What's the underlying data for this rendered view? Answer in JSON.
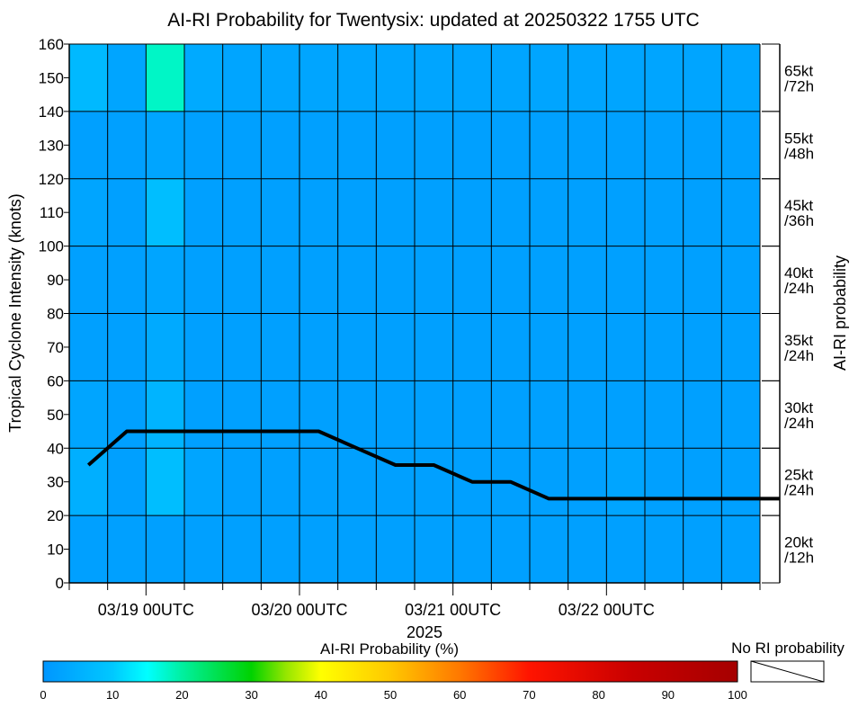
{
  "chart_data": {
    "type": "heatmap",
    "title": "AI-RI Probability for Twentysix: updated at 20250322 1755 UTC",
    "ylabel": "Tropical Cyclone Intensity (knots)",
    "xlabel": "2025",
    "right_label": "AI-RI probability",
    "ylim": [
      0,
      160
    ],
    "y_ticks": [
      0,
      10,
      20,
      30,
      40,
      50,
      60,
      70,
      80,
      90,
      100,
      110,
      120,
      130,
      140,
      150,
      160
    ],
    "x_tick_labels": [
      "03/19 00UTC",
      "03/20 00UTC",
      "03/21 00UTC",
      "03/22 00UTC"
    ],
    "time_columns": [
      "03/18 12UTC",
      "03/18 18UTC",
      "03/19 00UTC",
      "03/19 06UTC",
      "03/19 12UTC",
      "03/19 18UTC",
      "03/20 00UTC",
      "03/20 06UTC",
      "03/20 12UTC",
      "03/20 18UTC",
      "03/21 00UTC",
      "03/21 06UTC",
      "03/21 12UTC",
      "03/21 18UTC",
      "03/22 00UTC",
      "03/22 06UTC",
      "03/22 12UTC",
      "03/22 18UTC"
    ],
    "ri_rows": [
      {
        "label": [
          "20kt",
          "/12h"
        ],
        "y_range": [
          0,
          20
        ]
      },
      {
        "label": [
          "25kt",
          "/24h"
        ],
        "y_range": [
          20,
          40
        ]
      },
      {
        "label": [
          "30kt",
          "/24h"
        ],
        "y_range": [
          40,
          60
        ]
      },
      {
        "label": [
          "35kt",
          "/24h"
        ],
        "y_range": [
          60,
          80
        ]
      },
      {
        "label": [
          "40kt",
          "/24h"
        ],
        "y_range": [
          80,
          100
        ]
      },
      {
        "label": [
          "45kt",
          "/36h"
        ],
        "y_range": [
          100,
          120
        ]
      },
      {
        "label": [
          "55kt",
          "/48h"
        ],
        "y_range": [
          120,
          140
        ]
      },
      {
        "label": [
          "65kt",
          "/72h"
        ],
        "y_range": [
          140,
          160
        ]
      }
    ],
    "probabilities": [
      [
        2,
        2,
        2,
        2,
        2,
        2,
        2,
        2,
        2,
        2,
        2,
        2,
        2,
        2,
        2,
        2,
        2,
        2
      ],
      [
        5,
        2,
        8,
        3,
        2,
        2,
        2,
        2,
        2,
        2,
        2,
        2,
        2,
        2,
        3,
        2,
        2,
        2
      ],
      [
        3,
        2,
        6,
        2,
        2,
        2,
        2,
        2,
        2,
        2,
        2,
        2,
        2,
        2,
        2,
        2,
        2,
        2
      ],
      [
        2,
        2,
        4,
        2,
        2,
        2,
        2,
        2,
        2,
        2,
        2,
        2,
        2,
        2,
        2,
        2,
        2,
        2
      ],
      [
        2,
        2,
        3,
        2,
        2,
        2,
        2,
        2,
        2,
        2,
        2,
        2,
        2,
        2,
        2,
        2,
        2,
        2
      ],
      [
        3,
        2,
        8,
        2,
        2,
        2,
        2,
        2,
        2,
        2,
        2,
        2,
        2,
        2,
        2,
        2,
        2,
        2
      ],
      [
        2,
        2,
        3,
        2,
        2,
        2,
        2,
        2,
        2,
        2,
        2,
        2,
        2,
        2,
        2,
        2,
        2,
        2
      ],
      [
        7,
        3,
        18,
        4,
        3,
        3,
        3,
        3,
        3,
        3,
        3,
        3,
        3,
        3,
        3,
        3,
        3,
        3
      ]
    ],
    "intensity_series": {
      "x_index": [
        0.5,
        1.5,
        2.5,
        3.5,
        4.5,
        5.5,
        6.5,
        7.5,
        8.5,
        9.5,
        10.5,
        11.5,
        12.5,
        13.5,
        14.5,
        15.5,
        16.5,
        17.5
      ],
      "values": [
        35,
        45,
        45,
        45,
        45,
        45,
        45,
        40,
        35,
        35,
        30,
        30,
        25,
        25,
        25,
        25,
        25,
        25
      ]
    },
    "colorbar": {
      "label": "AI-RI Probability (%)",
      "range": [
        0,
        100
      ],
      "ticks": [
        0,
        10,
        20,
        30,
        40,
        50,
        60,
        70,
        80,
        90,
        100
      ],
      "no_ri_label": "No RI probability"
    }
  }
}
